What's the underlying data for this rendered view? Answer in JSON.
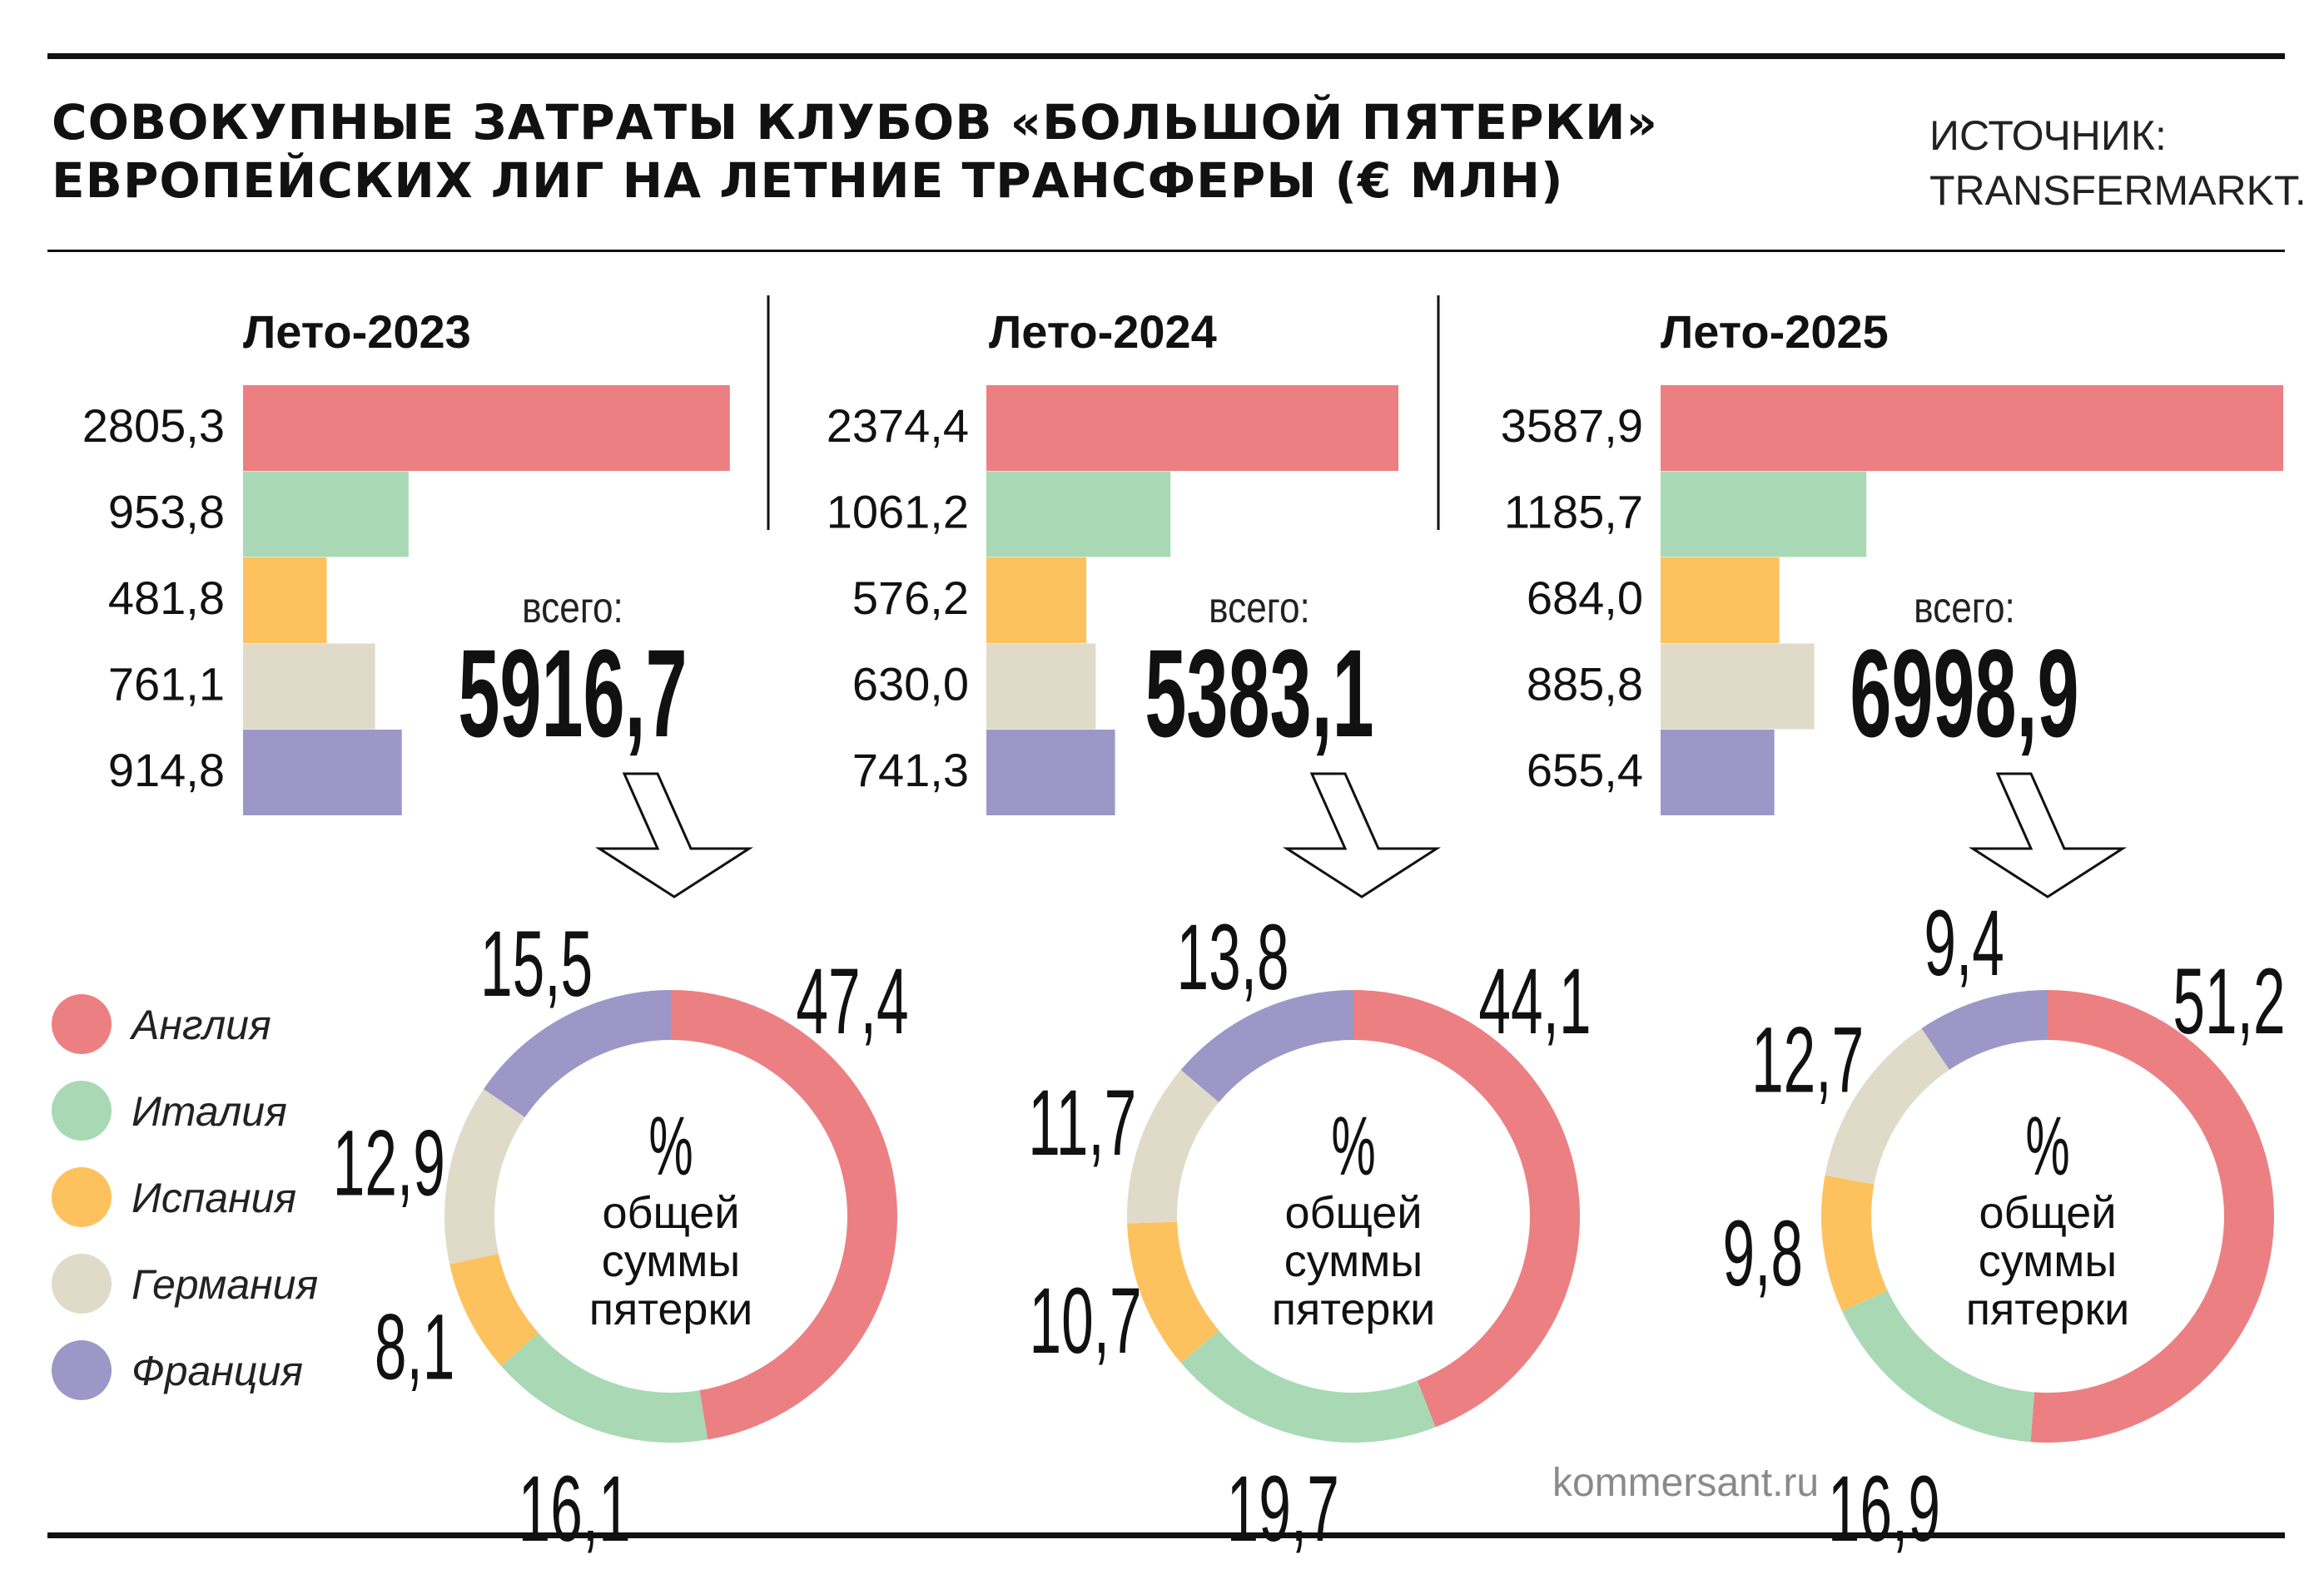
{
  "header": {
    "title_lines": [
      "СОВОКУПНЫЕ ЗАТРАТЫ КЛУБОВ «БОЛЬШОЙ ПЯТЕРКИ»",
      "ЕВРОПЕЙСКИХ ЛИГ НА ЛЕТНИЕ ТРАНСФЕРЫ (€ МЛН)"
    ],
    "source_lines": [
      "ИСТОЧНИК:",
      "TRANSFERMARKT."
    ]
  },
  "total_label": "всего:",
  "donut_center_lines": [
    "%",
    "общей",
    "суммы",
    "пятерки"
  ],
  "brand": "kommersant.ru",
  "legend": [
    {
      "label": "Англия",
      "color": "#ec7f82"
    },
    {
      "label": "Италия",
      "color": "#a8d9b4"
    },
    {
      "label": "Испания",
      "color": "#fdc25e"
    },
    {
      "label": "Германия",
      "color": "#e0dac8"
    },
    {
      "label": "Франция",
      "color": "#9d97c7"
    }
  ],
  "chart_data": [
    {
      "type": "bar",
      "title": "Лето-2023",
      "categories": [
        "Англия",
        "Италия",
        "Испания",
        "Германия",
        "Франция"
      ],
      "values": [
        2805.3,
        953.8,
        481.8,
        761.1,
        914.8
      ],
      "value_labels": [
        "2805,3",
        "953,8",
        "481,8",
        "761,1",
        "914,8"
      ],
      "total_label": "5916,7",
      "total": 5916.7,
      "xlim": [
        0,
        3587.9
      ]
    },
    {
      "type": "pie",
      "categories": [
        "Англия",
        "Италия",
        "Испания",
        "Германия",
        "Франция"
      ],
      "values": [
        47.4,
        16.1,
        8.1,
        12.9,
        15.5
      ],
      "value_labels": [
        "47,4",
        "16,1",
        "8,1",
        "12,9",
        "15,5"
      ]
    },
    {
      "type": "bar",
      "title": "Лето-2024",
      "categories": [
        "Англия",
        "Италия",
        "Испания",
        "Германия",
        "Франция"
      ],
      "values": [
        2374.4,
        1061.2,
        576.2,
        630.0,
        741.3
      ],
      "value_labels": [
        "2374,4",
        "1061,2",
        "576,2",
        "630,0",
        "741,3"
      ],
      "total_label": "5383,1",
      "total": 5383.1,
      "xlim": [
        0,
        3587.9
      ]
    },
    {
      "type": "pie",
      "categories": [
        "Англия",
        "Италия",
        "Испания",
        "Германия",
        "Франция"
      ],
      "values": [
        44.1,
        19.7,
        10.7,
        11.7,
        13.8
      ],
      "value_labels": [
        "44,1",
        "19,7",
        "10,7",
        "11,7",
        "13,8"
      ]
    },
    {
      "type": "bar",
      "title": "Лето-2025",
      "categories": [
        "Англия",
        "Италия",
        "Испания",
        "Германия",
        "Франция"
      ],
      "values": [
        3587.9,
        1185.7,
        684.0,
        885.8,
        655.4
      ],
      "value_labels": [
        "3587,9",
        "1185,7",
        "684,0",
        "885,8",
        "655,4"
      ],
      "total_label": "6998,9",
      "total": 6998.9,
      "xlim": [
        0,
        3587.9
      ]
    },
    {
      "type": "pie",
      "categories": [
        "Англия",
        "Италия",
        "Испания",
        "Германия",
        "Франция"
      ],
      "values": [
        51.2,
        16.9,
        9.8,
        12.7,
        9.4
      ],
      "value_labels": [
        "51,2",
        "16,9",
        "9,8",
        "12,7",
        "9,4"
      ]
    }
  ]
}
